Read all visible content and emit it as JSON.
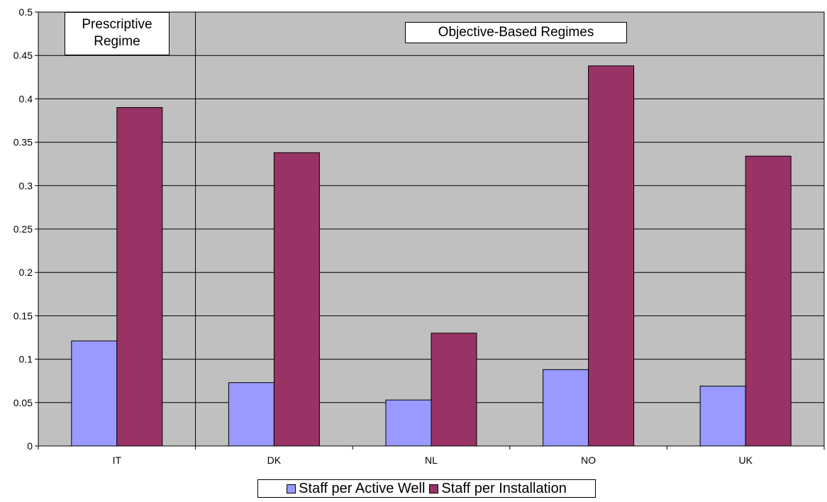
{
  "chart_data": {
    "type": "bar",
    "categories": [
      "IT",
      "DK",
      "NL",
      "NO",
      "UK"
    ],
    "series": [
      {
        "name": "Staff per Active Well",
        "values": [
          0.121,
          0.073,
          0.053,
          0.088,
          0.069
        ]
      },
      {
        "name": "Staff per Installation",
        "values": [
          0.39,
          0.338,
          0.13,
          0.438,
          0.334
        ]
      }
    ],
    "yticks": [
      "0",
      "0.05",
      "0.1",
      "0.15",
      "0.2",
      "0.25",
      "0.3",
      "0.35",
      "0.4",
      "0.45",
      "0.5"
    ],
    "ylim": [
      0,
      0.5
    ],
    "grid": "horizontal",
    "legend_position": "bottom",
    "annotations": [
      {
        "line1": "Prescriptive",
        "line2": "Regime"
      },
      {
        "line1": "Objective-Based Regimes",
        "line2": ""
      }
    ],
    "colors": {
      "plot_background": "#c0c0c0",
      "series1": "#9999ff",
      "series2": "#993366",
      "gridline": "#000000"
    }
  }
}
